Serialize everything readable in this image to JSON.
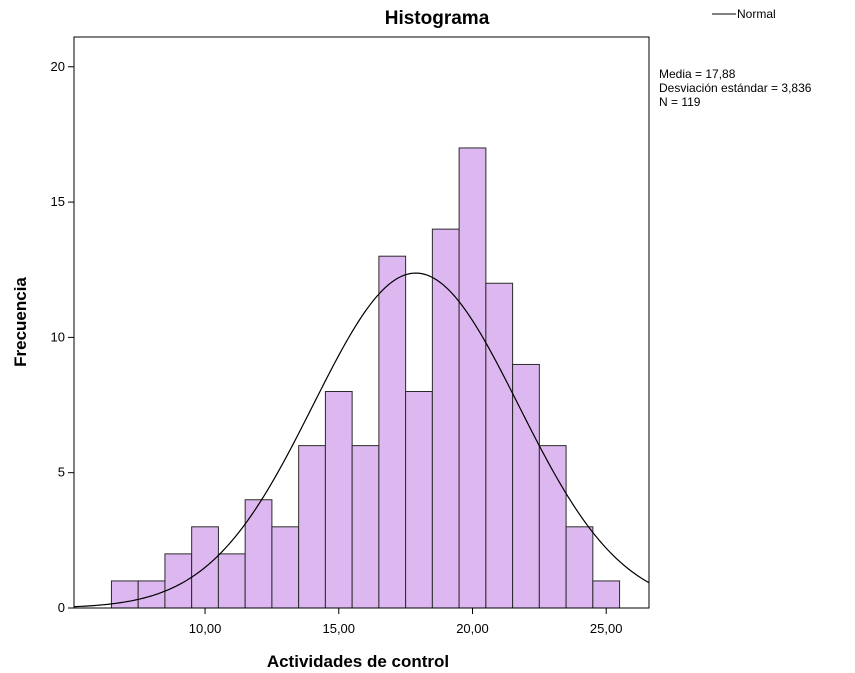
{
  "chart_data": {
    "type": "bar",
    "title": "Histograma",
    "xlabel": "Actividades de control",
    "ylabel": "Frecuencia",
    "bins": [
      {
        "x_start": 6.5,
        "x_end": 7.5,
        "value": 1
      },
      {
        "x_start": 7.5,
        "x_end": 8.5,
        "value": 1
      },
      {
        "x_start": 8.5,
        "x_end": 9.5,
        "value": 2
      },
      {
        "x_start": 9.5,
        "x_end": 10.5,
        "value": 3
      },
      {
        "x_start": 10.5,
        "x_end": 11.5,
        "value": 2
      },
      {
        "x_start": 11.5,
        "x_end": 12.5,
        "value": 4
      },
      {
        "x_start": 12.5,
        "x_end": 13.5,
        "value": 3
      },
      {
        "x_start": 13.5,
        "x_end": 14.5,
        "value": 6
      },
      {
        "x_start": 14.5,
        "x_end": 15.5,
        "value": 8
      },
      {
        "x_start": 15.5,
        "x_end": 16.5,
        "value": 6
      },
      {
        "x_start": 16.5,
        "x_end": 17.5,
        "value": 13
      },
      {
        "x_start": 17.5,
        "x_end": 18.5,
        "value": 8
      },
      {
        "x_start": 18.5,
        "x_end": 19.5,
        "value": 14
      },
      {
        "x_start": 19.5,
        "x_end": 20.5,
        "value": 17
      },
      {
        "x_start": 20.5,
        "x_end": 21.5,
        "value": 12
      },
      {
        "x_start": 21.5,
        "x_end": 22.5,
        "value": 9
      },
      {
        "x_start": 22.5,
        "x_end": 23.5,
        "value": 6
      },
      {
        "x_start": 23.5,
        "x_end": 24.5,
        "value": 3
      },
      {
        "x_start": 24.5,
        "x_end": 25.5,
        "value": 1
      }
    ],
    "xlim": [
      5.1,
      26.6
    ],
    "ylim": [
      0,
      21.1
    ],
    "xticks": [
      10,
      15,
      20,
      25
    ],
    "xtick_labels": [
      "10,00",
      "15,00",
      "20,00",
      "25,00"
    ],
    "yticks": [
      0,
      5,
      10,
      15,
      20
    ],
    "ytick_labels": [
      "0",
      "5",
      "10",
      "15",
      "20"
    ],
    "normal_curve": {
      "mean": 17.88,
      "sd": 3.836,
      "n": 119,
      "bin_width": 1
    },
    "legend": {
      "label": "Normal",
      "placement": "top-right"
    },
    "stats": [
      "Media = 17,88",
      "Desviación estándar = 3,836",
      "N = 119"
    ],
    "grid": false,
    "colors": {
      "bar_fill": "#DDB8F0",
      "bar_stroke": "#2a2a2a",
      "curve": "#000000"
    }
  }
}
